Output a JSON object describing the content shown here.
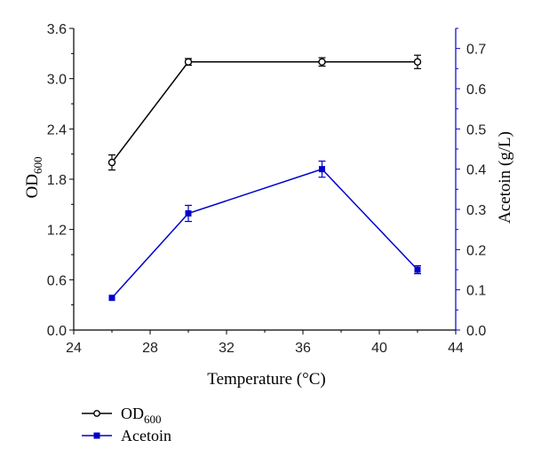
{
  "chart_data": {
    "type": "line",
    "xlabel": "Temperature (°C)",
    "x_ticks": [
      "24",
      "28",
      "32",
      "36",
      "40",
      "44"
    ],
    "xlim": [
      24,
      44
    ],
    "left_axis": {
      "label_main": "OD",
      "label_sub": "600",
      "ylim": [
        0,
        3.6
      ],
      "ticks": [
        "0.0",
        "0.6",
        "1.2",
        "1.8",
        "2.4",
        "3.0",
        "3.6"
      ],
      "color": "#000000"
    },
    "right_axis": {
      "label": "Acetoin (g/L)",
      "ylim": [
        0,
        0.75
      ],
      "ticks": [
        "0.0",
        "0.1",
        "0.2",
        "0.3",
        "0.4",
        "0.5",
        "0.6",
        "0.7"
      ],
      "color": "#0000cc"
    },
    "series": [
      {
        "name": "OD600",
        "legend_main": "OD",
        "legend_sub": "600",
        "axis": "left",
        "marker": "open-circle",
        "color": "#000000",
        "x": [
          26,
          30,
          37,
          42
        ],
        "y": [
          2.0,
          3.2,
          3.2,
          3.2
        ],
        "error": [
          0.09,
          0.04,
          0.05,
          0.08
        ]
      },
      {
        "name": "Acetoin",
        "legend_main": "Acetoin",
        "legend_sub": "",
        "axis": "right",
        "marker": "filled-square",
        "color": "#0000cc",
        "x": [
          26,
          30,
          37,
          42
        ],
        "y": [
          0.08,
          0.29,
          0.4,
          0.15
        ],
        "error": [
          0.0,
          0.02,
          0.02,
          0.01
        ]
      }
    ],
    "legend_position": "bottom-left"
  }
}
